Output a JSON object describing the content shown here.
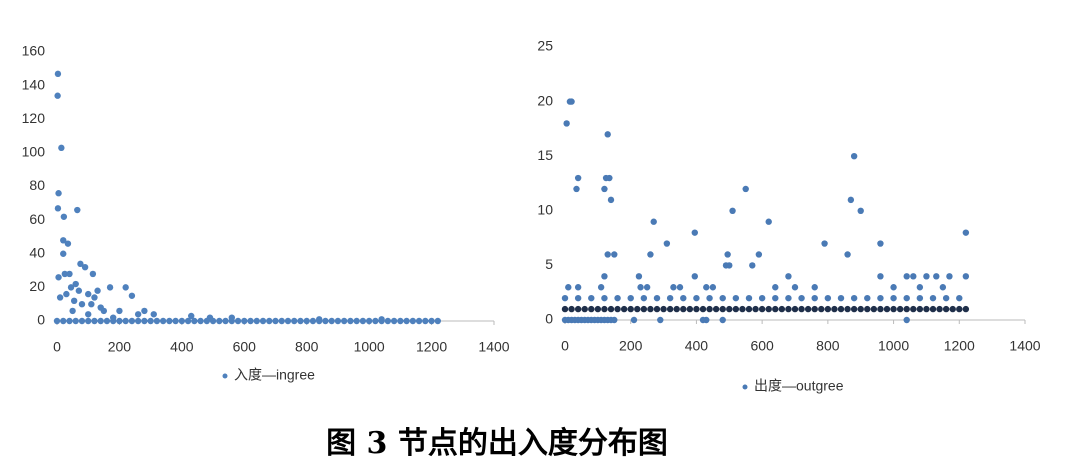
{
  "caption": "图 3  节点的出入度分布图",
  "chart_data": [
    {
      "type": "scatter",
      "xlim": [
        0,
        1400
      ],
      "ylim": [
        0,
        160
      ],
      "xticks": [
        0,
        200,
        400,
        600,
        800,
        1000,
        1200,
        1400
      ],
      "yticks": [
        0,
        20,
        40,
        60,
        80,
        100,
        120,
        140,
        160
      ],
      "legend": "bottom",
      "series": [
        {
          "name": "入度—ingree",
          "color": "#4f81bd",
          "x": [
            3,
            2,
            14,
            5,
            3,
            22,
            20,
            35,
            20,
            65,
            5,
            25,
            40,
            60,
            75,
            90,
            115,
            45,
            70,
            100,
            130,
            170,
            220,
            240,
            10,
            30,
            55,
            80,
            110,
            140,
            120,
            150,
            200,
            260,
            310,
            430,
            490,
            560,
            840,
            1040,
            100,
            50,
            180,
            280
          ],
          "values": [
            147,
            134,
            103,
            76,
            67,
            62,
            48,
            46,
            40,
            66,
            26,
            28,
            28,
            22,
            34,
            32,
            28,
            20,
            18,
            16,
            18,
            20,
            20,
            15,
            14,
            16,
            12,
            10,
            10,
            8,
            14,
            6,
            6,
            4,
            4,
            3,
            2,
            2,
            1,
            1,
            4,
            6,
            2,
            6
          ]
        },
        {
          "color": "#4f81bd",
          "x": [
            0,
            20,
            40,
            60,
            80,
            100,
            120,
            140,
            160,
            180,
            200,
            220,
            240,
            260,
            280,
            300,
            320,
            340,
            360,
            380,
            400,
            420,
            440,
            460,
            480,
            500,
            520,
            540,
            560,
            580,
            600,
            620,
            640,
            660,
            680,
            700,
            720,
            740,
            760,
            780,
            800,
            820,
            840,
            860,
            880,
            900,
            920,
            940,
            960,
            980,
            1000,
            1020,
            1040,
            1060,
            1080,
            1100,
            1120,
            1140,
            1160,
            1180,
            1200,
            1220
          ],
          "values": [
            0,
            0,
            0,
            0,
            0,
            0,
            0,
            0,
            0,
            0,
            0,
            0,
            0,
            0,
            0,
            0,
            0,
            0,
            0,
            0,
            0,
            0,
            0,
            0,
            0,
            0,
            0,
            0,
            0,
            0,
            0,
            0,
            0,
            0,
            0,
            0,
            0,
            0,
            0,
            0,
            0,
            0,
            0,
            0,
            0,
            0,
            0,
            0,
            0,
            0,
            0,
            0,
            0,
            0,
            0,
            0,
            0,
            0,
            0,
            0,
            0,
            0
          ]
        }
      ]
    },
    {
      "type": "scatter",
      "xlim": [
        0,
        1400
      ],
      "ylim": [
        0,
        25
      ],
      "xticks": [
        0,
        200,
        400,
        600,
        800,
        1000,
        1200,
        1400
      ],
      "yticks": [
        0,
        5,
        10,
        15,
        20,
        25
      ],
      "legend": "bottom",
      "series": [
        {
          "name": "出度—outgree",
          "color": "#4a7ab5",
          "x": [
            5,
            15,
            20,
            35,
            40,
            120,
            125,
            135,
            130,
            140,
            120,
            130,
            150,
            225,
            260,
            270,
            310,
            395,
            395,
            495,
            490,
            500,
            510,
            550,
            570,
            590,
            620,
            680,
            790,
            860,
            870,
            880,
            900,
            960,
            960,
            1040,
            1060,
            1100,
            1130,
            1170,
            1220,
            1220,
            10,
            40,
            110,
            230,
            250,
            330,
            350,
            430,
            450,
            640,
            700,
            760,
            1000,
            1080,
            1150
          ],
          "values": [
            18,
            20,
            20,
            12,
            13,
            12,
            13,
            13,
            17,
            11,
            4,
            6,
            6,
            4,
            6,
            9,
            7,
            8,
            4,
            6,
            5,
            5,
            10,
            12,
            5,
            6,
            9,
            4,
            7,
            6,
            11,
            15,
            10,
            7,
            4,
            4,
            4,
            4,
            4,
            4,
            8,
            4,
            3,
            3,
            3,
            3,
            3,
            3,
            3,
            3,
            3,
            3,
            3,
            3,
            3,
            3,
            3
          ]
        },
        {
          "color": "#1f2f4a",
          "x": [
            0,
            20,
            40,
            60,
            80,
            100,
            120,
            140,
            160,
            180,
            200,
            220,
            240,
            260,
            280,
            300,
            320,
            340,
            360,
            380,
            400,
            420,
            440,
            460,
            480,
            500,
            520,
            540,
            560,
            580,
            600,
            620,
            640,
            660,
            680,
            700,
            720,
            740,
            760,
            780,
            800,
            820,
            840,
            860,
            880,
            900,
            920,
            940,
            960,
            980,
            1000,
            1020,
            1040,
            1060,
            1080,
            1100,
            1120,
            1140,
            1160,
            1180,
            1200,
            1220
          ],
          "values": [
            1,
            1,
            1,
            1,
            1,
            1,
            1,
            1,
            1,
            1,
            1,
            1,
            1,
            1,
            1,
            1,
            1,
            1,
            1,
            1,
            1,
            1,
            1,
            1,
            1,
            1,
            1,
            1,
            1,
            1,
            1,
            1,
            1,
            1,
            1,
            1,
            1,
            1,
            1,
            1,
            1,
            1,
            1,
            1,
            1,
            1,
            1,
            1,
            1,
            1,
            1,
            1,
            1,
            1,
            1,
            1,
            1,
            1,
            1,
            1,
            1,
            1
          ]
        },
        {
          "color": "#4a7ab5",
          "x": [
            0,
            40,
            80,
            120,
            160,
            200,
            240,
            280,
            320,
            360,
            400,
            440,
            480,
            520,
            560,
            600,
            640,
            680,
            720,
            760,
            800,
            840,
            880,
            920,
            960,
            1000,
            1040,
            1080,
            1120,
            1160,
            1200
          ],
          "values": [
            2,
            2,
            2,
            2,
            2,
            2,
            2,
            2,
            2,
            2,
            2,
            2,
            2,
            2,
            2,
            2,
            2,
            2,
            2,
            2,
            2,
            2,
            2,
            2,
            2,
            2,
            2,
            2,
            2,
            2,
            2
          ]
        },
        {
          "color": "#4a7ab5",
          "x": [
            0,
            10,
            20,
            30,
            40,
            50,
            60,
            70,
            80,
            90,
            100,
            110,
            120,
            130,
            140,
            150,
            210,
            290,
            420,
            430,
            480,
            1040
          ],
          "values": [
            0,
            0,
            0,
            0,
            0,
            0,
            0,
            0,
            0,
            0,
            0,
            0,
            0,
            0,
            0,
            0,
            0,
            0,
            0,
            0,
            0,
            0
          ]
        }
      ]
    }
  ]
}
